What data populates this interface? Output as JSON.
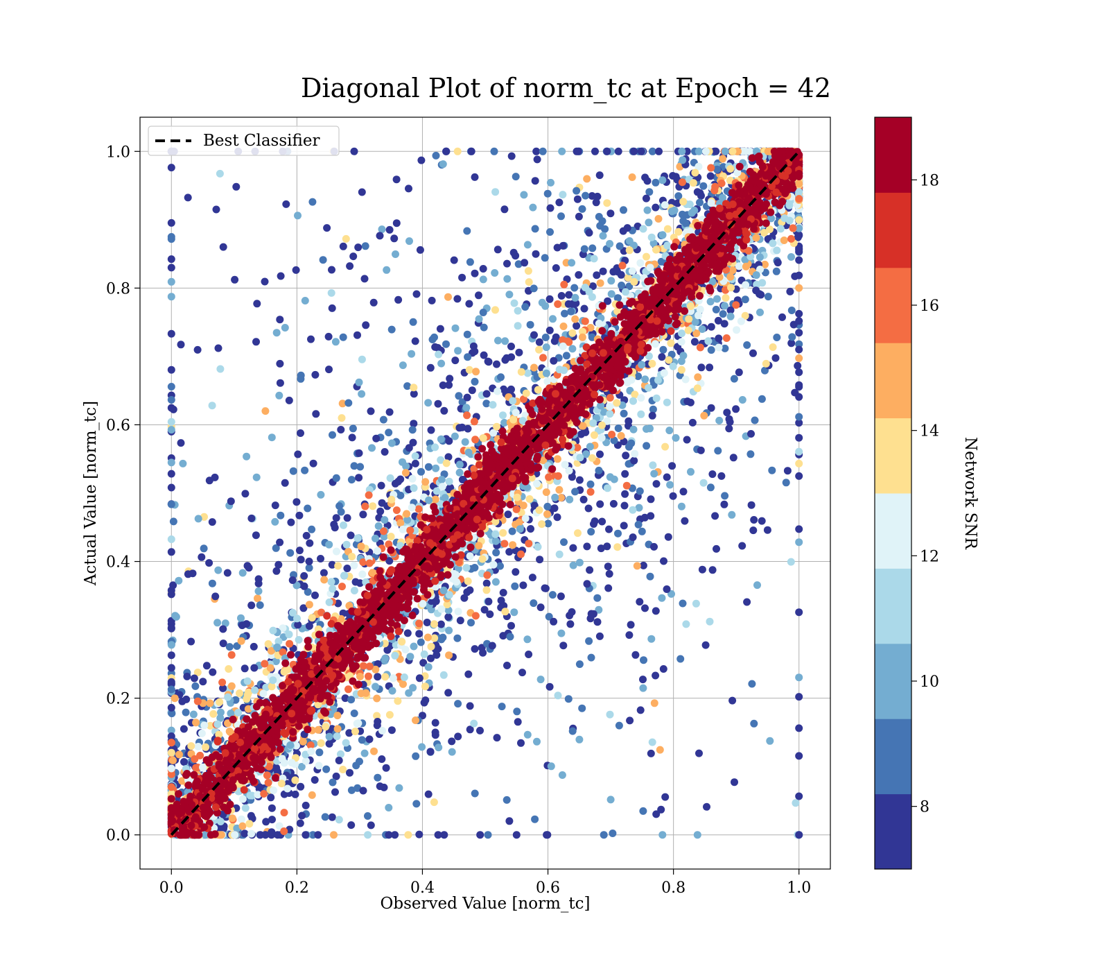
{
  "chart_data": {
    "type": "scatter",
    "title": "Diagonal Plot of norm_tc at Epoch = 42",
    "xlabel": "Observed Value [norm_tc]",
    "ylabel": "Actual Value [norm_tc]",
    "xlim": [
      -0.05,
      1.05
    ],
    "ylim": [
      -0.05,
      1.05
    ],
    "xticks": [
      "0.0",
      "0.2",
      "0.4",
      "0.6",
      "0.8",
      "1.0"
    ],
    "yticks": [
      "0.0",
      "0.2",
      "0.4",
      "0.6",
      "0.8",
      "1.0"
    ],
    "grid": true,
    "legend": {
      "placement": "upper-left",
      "entries": [
        "Best Classifier"
      ]
    },
    "reference_line": {
      "name": "Best Classifier",
      "style": "dashed",
      "color": "#000000",
      "x": [
        0,
        1
      ],
      "y": [
        0,
        1
      ]
    },
    "colorbar": {
      "label": "Network SNR",
      "range": [
        7,
        19
      ],
      "ticks": [
        "8",
        "10",
        "12",
        "14",
        "16",
        "18"
      ],
      "bin_colors": [
        "#313695",
        "#4575b4",
        "#74add1",
        "#abd9e9",
        "#e0f3f8",
        "#fee090",
        "#fdae61",
        "#f46d43",
        "#d73027",
        "#a50026"
      ]
    },
    "scatter_description": {
      "points_near_diagonal_snr": "high (>18)",
      "outlier_points_snr": "mostly low (7–11)",
      "x_range": [
        0,
        1
      ],
      "y_range": [
        0,
        1
      ]
    }
  }
}
